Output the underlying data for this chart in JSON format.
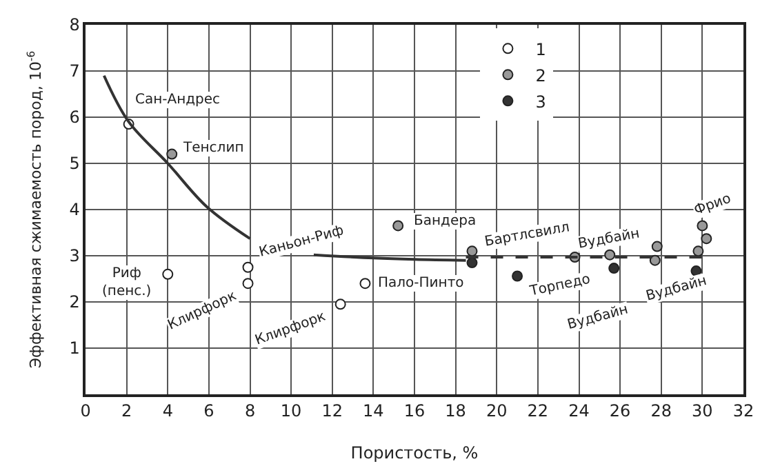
{
  "chart_data": {
    "type": "scatter",
    "xlabel": "Пористость, %",
    "ylabel": "Эффективная сжимаемость пород, 10$^{-6}$",
    "xlim": [
      0,
      32
    ],
    "xticks": [
      0,
      2,
      4,
      6,
      8,
      10,
      12,
      14,
      16,
      18,
      20,
      22,
      24,
      26,
      28,
      30,
      32
    ],
    "ylim": [
      0,
      8
    ],
    "yticks": [
      1,
      2,
      3,
      4,
      5,
      6,
      7,
      8
    ],
    "grid": true,
    "legend": "top",
    "marker": "circle",
    "series": [
      {
        "name": "1",
        "color": "#ffffff",
        "x": [
          2.1,
          4.0,
          7.9,
          7.9,
          12.4,
          13.6
        ],
        "values": [
          5.85,
          2.6,
          2.75,
          2.4,
          1.95,
          2.4
        ]
      },
      {
        "name": "2",
        "color": "#999999",
        "x": [
          4.2,
          15.2,
          18.8,
          23.8,
          25.5,
          27.8,
          27.7,
          30.0,
          30.2,
          29.8
        ],
        "values": [
          5.2,
          3.65,
          3.1,
          2.97,
          3.02,
          3.2,
          2.9,
          3.65,
          3.37,
          3.1
        ]
      },
      {
        "name": "3",
        "color": "#333333",
        "x": [
          18.8,
          21.0,
          25.7,
          29.7
        ],
        "values": [
          2.85,
          2.56,
          2.73,
          2.67
        ]
      },
      {
        "type": "line",
        "marker": "none",
        "color": "#333333",
        "line_style": "solid",
        "x": [
          0.9,
          2.1,
          4.0,
          5.9,
          8.0
        ],
        "values": [
          6.9,
          5.9,
          5.0,
          4.06,
          3.37
        ]
      },
      {
        "type": "line",
        "marker": "none",
        "color": "#333333",
        "line_style": "solid",
        "x": [
          11.1,
          14.0,
          16.0,
          18.5
        ],
        "values": [
          3.02,
          2.95,
          2.92,
          2.9
        ]
      },
      {
        "type": "line",
        "marker": "none",
        "color": "#333333",
        "line_style": "dashed",
        "x": [
          18.5,
          30.5
        ],
        "values": [
          2.97,
          2.97
        ]
      }
    ],
    "annotations": [
      {
        "text": "Сан-Андрес",
        "x": 2.1,
        "y": 5.85
      },
      {
        "text": "Тенслип",
        "x": 4.2,
        "y": 5.2
      },
      {
        "text": "Риф\n(пенс.)",
        "x": 4.0,
        "y": 2.6
      },
      {
        "text": "Клирфорк",
        "x": 7.9,
        "y": 2.4
      },
      {
        "text": "Каньон-Риф",
        "x": 8.0,
        "y": 3.37
      },
      {
        "text": "Бандера",
        "x": 15.2,
        "y": 3.65
      },
      {
        "text": "Клирфорк",
        "x": 12.4,
        "y": 1.95
      },
      {
        "text": "Пало-Пинто",
        "x": 13.6,
        "y": 2.4
      },
      {
        "text": "Бартлсвилл",
        "x": 18.8,
        "y": 3.1
      },
      {
        "text": "Торпедо",
        "x": 21.0,
        "y": 2.56
      },
      {
        "text": "Вудбайн",
        "x": 23.8,
        "y": 2.97
      },
      {
        "text": "Вудбайн",
        "x": 25.7,
        "y": 2.73
      },
      {
        "text": "Вудбайн",
        "x": 27.7,
        "y": 2.9
      },
      {
        "text": "Фрио",
        "x": 30.0,
        "y": 3.65
      }
    ]
  }
}
